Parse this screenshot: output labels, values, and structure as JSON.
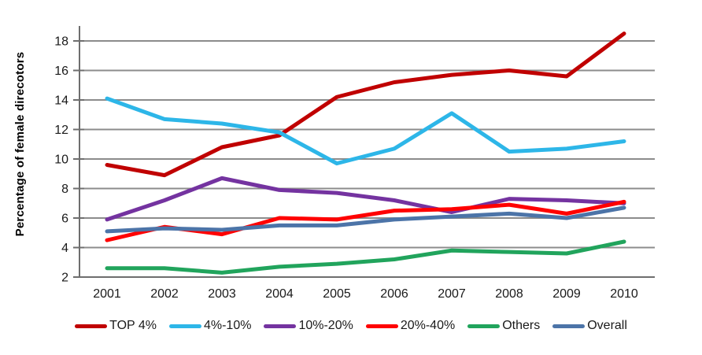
{
  "chart_data": {
    "type": "line",
    "title": "",
    "xlabel": "",
    "ylabel": "Percentage of female direcotors",
    "categories": [
      "2001",
      "2002",
      "2003",
      "2004",
      "2005",
      "2006",
      "2007",
      "2008",
      "2009",
      "2010"
    ],
    "ylim": [
      2,
      18
    ],
    "ytick_step": 2,
    "yticks": [
      2,
      4,
      6,
      8,
      10,
      12,
      14,
      16,
      18
    ],
    "grid": true,
    "legend_position": "bottom",
    "series": [
      {
        "name": "TOP 4%",
        "color": "#C00000",
        "values": [
          9.6,
          8.9,
          10.8,
          11.6,
          14.2,
          15.2,
          15.7,
          16.0,
          15.6,
          18.5
        ]
      },
      {
        "name": "4%-10%",
        "color": "#2DB6E8",
        "values": [
          14.1,
          12.7,
          12.4,
          11.8,
          9.7,
          10.7,
          13.1,
          10.5,
          10.7,
          11.2
        ]
      },
      {
        "name": "10%-20%",
        "color": "#7433A0",
        "values": [
          5.9,
          7.2,
          8.7,
          7.9,
          7.7,
          7.2,
          6.4,
          7.3,
          7.2,
          7.0
        ]
      },
      {
        "name": "20%-40%",
        "color": "#FF0000",
        "values": [
          4.5,
          5.4,
          4.9,
          6.0,
          5.9,
          6.5,
          6.6,
          6.9,
          6.3,
          7.1
        ]
      },
      {
        "name": "Others",
        "color": "#21A45C",
        "values": [
          2.6,
          2.6,
          2.3,
          2.7,
          2.9,
          3.2,
          3.8,
          3.7,
          3.6,
          4.4
        ]
      },
      {
        "name": "Overall",
        "color": "#4C74A8",
        "values": [
          5.1,
          5.3,
          5.2,
          5.5,
          5.5,
          5.9,
          6.1,
          6.3,
          6.0,
          6.7
        ]
      }
    ],
    "styles": {
      "gridline_color": "#8C8C8C",
      "axis_color": "#6E6E6E",
      "tick_label_color": "#1a1a1a",
      "background": "#ffffff",
      "line_width": 5
    }
  }
}
